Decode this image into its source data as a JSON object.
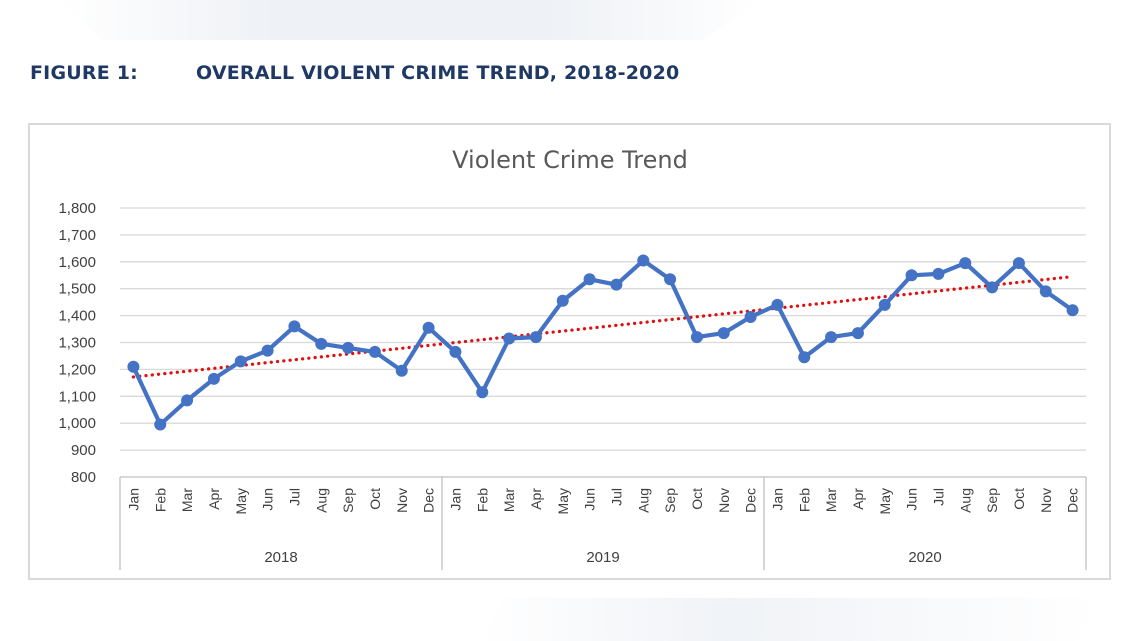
{
  "figure": {
    "label": "FIGURE 1:",
    "title": "OVERALL VIOLENT CRIME TREND, 2018-2020"
  },
  "chart_data": {
    "type": "line",
    "title": "Violent Crime Trend",
    "xlabel": "",
    "ylabel": "",
    "ylim": [
      800,
      1800
    ],
    "yticks": [
      "800",
      "900",
      "1,000",
      "1,100",
      "1,200",
      "1,300",
      "1,400",
      "1,500",
      "1,600",
      "1,700",
      "1,800"
    ],
    "ytick_values": [
      800,
      900,
      1000,
      1100,
      1200,
      1300,
      1400,
      1500,
      1600,
      1700,
      1800
    ],
    "grid": true,
    "legend": "none",
    "years": [
      "2018",
      "2019",
      "2020"
    ],
    "months": [
      "Jan",
      "Feb",
      "Mar",
      "Apr",
      "May",
      "Jun",
      "Jul",
      "Aug",
      "Sep",
      "Oct",
      "Nov",
      "Dec"
    ],
    "series": [
      {
        "values": [
          1210,
          995,
          1085,
          1165,
          1230,
          1270,
          1360,
          1295,
          1280,
          1265,
          1195,
          1355,
          1265,
          1115,
          1315,
          1320,
          1455,
          1535,
          1515,
          1605,
          1535,
          1320,
          1335,
          1395,
          1440,
          1245,
          1320,
          1335,
          1440,
          1550,
          1555,
          1595,
          1505,
          1595,
          1490,
          1420
        ],
        "color": "#4472c4"
      }
    ],
    "trendline": {
      "type": "linear",
      "start": 1172,
      "end": 1545,
      "color": "#e01010",
      "style": "dotted"
    }
  }
}
